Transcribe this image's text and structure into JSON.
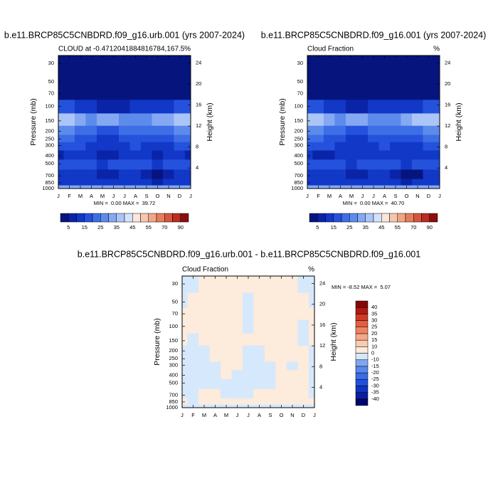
{
  "chart_data": [
    {
      "type": "contour",
      "title": "b.e11.BRCP85C5CNBDRD.f09_g16.urb.001 (yrs 2007-2024)",
      "left_label": "CLOUD at -0.4712041884816784,167.5",
      "units": "%",
      "ylabel": "Pressure (mb)",
      "y2label": "Height (km)",
      "stats": "MIN =  0.00 MAX =  39.72",
      "categories": [
        "J",
        "F",
        "M",
        "A",
        "M",
        "J",
        "J",
        "A",
        "S",
        "O",
        "N",
        "D",
        "J"
      ],
      "ylog": true,
      "ylim": [
        1000,
        24
      ],
      "yticks": [
        30,
        50,
        70,
        100,
        150,
        200,
        250,
        300,
        400,
        500,
        700,
        850,
        1000
      ],
      "y2ticks": [
        4,
        8,
        12,
        16,
        20,
        24
      ],
      "y": [
        30,
        50,
        70,
        100,
        150,
        200,
        250,
        300,
        400,
        500,
        700,
        850,
        1000
      ],
      "z": [
        [
          1,
          1,
          1,
          1,
          1,
          1,
          1,
          1,
          1,
          1,
          1,
          1,
          1
        ],
        [
          2,
          2,
          2,
          2,
          2,
          2,
          2,
          2,
          2,
          2,
          2,
          2,
          2
        ],
        [
          3,
          3,
          3,
          3,
          3,
          3,
          3,
          3,
          3,
          3,
          3,
          3,
          3
        ],
        [
          18,
          16,
          12,
          10,
          9,
          8,
          9,
          10,
          11,
          12,
          14,
          17,
          18
        ],
        [
          38,
          36,
          32,
          28,
          30,
          33,
          29,
          26,
          28,
          31,
          34,
          38,
          38
        ],
        [
          28,
          27,
          24,
          20,
          18,
          17,
          22,
          24,
          22,
          20,
          23,
          27,
          28
        ],
        [
          22,
          21,
          18,
          16,
          14,
          13,
          16,
          19,
          17,
          15,
          17,
          21,
          22
        ],
        [
          18,
          17,
          15,
          13,
          12,
          11,
          13,
          15,
          14,
          12,
          14,
          17,
          18
        ],
        [
          9,
          12,
          13,
          10,
          8,
          9,
          12,
          14,
          12,
          9,
          10,
          13,
          9
        ],
        [
          16,
          17,
          18,
          16,
          14,
          15,
          18,
          19,
          17,
          14,
          15,
          17,
          16
        ],
        [
          10,
          11,
          12,
          10,
          9,
          8,
          11,
          12,
          9,
          4,
          8,
          11,
          10
        ],
        [
          12,
          13,
          14,
          12,
          11,
          10,
          12,
          13,
          11,
          9,
          11,
          13,
          12
        ],
        [
          30,
          30,
          30,
          30,
          30,
          30,
          30,
          30,
          30,
          30,
          30,
          30,
          30
        ]
      ],
      "levels": [
        5,
        10,
        15,
        20,
        25,
        30,
        35,
        40,
        45,
        50,
        55,
        60,
        70,
        80,
        90
      ],
      "colorbar_ticks": [
        5,
        15,
        25,
        35,
        45,
        55,
        70,
        90
      ],
      "colorbar_position": "bottom",
      "colors": [
        "#06157e",
        "#0a24a8",
        "#1238c8",
        "#2552dc",
        "#3d6ee6",
        "#5d8bec",
        "#84a8f2",
        "#abc5f6",
        "#d3e2fb",
        "#fbe6da",
        "#f6c7ae",
        "#f0a585",
        "#e47d5c",
        "#d5563f",
        "#bb2e22",
        "#8c0d0d"
      ]
    },
    {
      "type": "contour",
      "title": "b.e11.BRCP85C5CNBDRD.f09_g16.001 (yrs 2007-2024)",
      "left_label": "Cloud Fraction",
      "units": "%",
      "ylabel": "Pressure (mb)",
      "y2label": "Height (km)",
      "stats": "MIN =  0.00 MAX =  40.70",
      "categories": [
        "J",
        "F",
        "M",
        "A",
        "M",
        "J",
        "J",
        "A",
        "S",
        "O",
        "N",
        "D",
        "J"
      ],
      "ylog": true,
      "ylim": [
        1000,
        24
      ],
      "yticks": [
        30,
        50,
        70,
        100,
        150,
        200,
        250,
        300,
        400,
        500,
        700,
        850,
        1000
      ],
      "y2ticks": [
        4,
        8,
        12,
        16,
        20,
        24
      ],
      "y": [
        30,
        50,
        70,
        100,
        150,
        200,
        250,
        300,
        400,
        500,
        700,
        850,
        1000
      ],
      "z": [
        [
          1,
          1,
          1,
          1,
          1,
          1,
          1,
          1,
          1,
          1,
          1,
          1,
          1
        ],
        [
          2,
          2,
          2,
          2,
          2,
          2,
          2,
          2,
          2,
          2,
          2,
          2,
          2
        ],
        [
          3,
          3,
          3,
          3,
          3,
          3,
          3,
          3,
          3,
          3,
          3,
          3,
          3
        ],
        [
          19,
          16,
          12,
          10,
          9,
          8,
          10,
          10,
          11,
          12,
          14,
          18,
          19
        ],
        [
          39,
          36,
          31,
          28,
          30,
          33,
          28,
          26,
          28,
          31,
          35,
          39,
          39
        ],
        [
          29,
          27,
          24,
          20,
          18,
          17,
          22,
          24,
          22,
          20,
          23,
          28,
          29
        ],
        [
          23,
          21,
          18,
          16,
          14,
          13,
          17,
          19,
          17,
          15,
          17,
          21,
          23
        ],
        [
          19,
          17,
          15,
          13,
          12,
          11,
          14,
          15,
          14,
          12,
          14,
          17,
          19
        ],
        [
          11,
          9,
          8,
          10,
          11,
          12,
          13,
          14,
          12,
          10,
          11,
          13,
          11
        ],
        [
          17,
          17,
          18,
          16,
          14,
          15,
          18,
          19,
          17,
          14,
          15,
          17,
          17
        ],
        [
          10,
          11,
          12,
          11,
          9,
          8,
          11,
          12,
          8,
          4,
          4,
          11,
          10
        ],
        [
          12,
          13,
          14,
          12,
          11,
          10,
          12,
          13,
          11,
          9,
          11,
          13,
          12
        ],
        [
          30,
          30,
          30,
          30,
          30,
          30,
          30,
          30,
          30,
          30,
          30,
          30,
          30
        ]
      ],
      "levels": [
        5,
        10,
        15,
        20,
        25,
        30,
        35,
        40,
        45,
        50,
        55,
        60,
        70,
        80,
        90
      ],
      "colorbar_ticks": [
        5,
        15,
        25,
        35,
        45,
        55,
        70,
        90
      ],
      "colorbar_position": "bottom",
      "colors": [
        "#06157e",
        "#0a24a8",
        "#1238c8",
        "#2552dc",
        "#3d6ee6",
        "#5d8bec",
        "#84a8f2",
        "#abc5f6",
        "#d3e2fb",
        "#fbe6da",
        "#f6c7ae",
        "#f0a585",
        "#e47d5c",
        "#d5563f",
        "#bb2e22",
        "#8c0d0d"
      ]
    },
    {
      "type": "contour",
      "title": "b.e11.BRCP85C5CNBDRD.f09_g16.urb.001 - b.e11.BRCP85C5CNBDRD.f09_g16.001",
      "left_label": "Cloud Fraction",
      "units": "%",
      "ylabel": "Pressure (mb)",
      "y2label": "Height (km)",
      "stats": "MIN = -8.52 MAX =  5.07",
      "categories": [
        "J",
        "F",
        "M",
        "A",
        "M",
        "J",
        "J",
        "A",
        "S",
        "O",
        "N",
        "D",
        "J"
      ],
      "ylog": true,
      "ylim": [
        1000,
        24
      ],
      "yticks": [
        30,
        50,
        70,
        100,
        150,
        200,
        250,
        300,
        400,
        500,
        700,
        850,
        1000
      ],
      "y2ticks": [
        4,
        8,
        12,
        16,
        20,
        24
      ],
      "y": [
        30,
        50,
        70,
        100,
        150,
        200,
        250,
        300,
        400,
        500,
        700,
        850,
        1000
      ],
      "z": [
        [
          -2,
          -1,
          1,
          1,
          1,
          1,
          1,
          1,
          1,
          1,
          1,
          -1,
          -2
        ],
        [
          -1,
          1,
          1,
          1,
          1,
          1,
          -1,
          1,
          1,
          1,
          1,
          1,
          -1
        ],
        [
          1,
          1,
          1,
          1,
          1,
          1,
          -1,
          1,
          1,
          1,
          1,
          1,
          1
        ],
        [
          1,
          1,
          1,
          1,
          1,
          1,
          -1,
          1,
          1,
          1,
          1,
          -1,
          1
        ],
        [
          1,
          -1,
          1,
          1,
          1,
          1,
          1,
          1,
          1,
          1,
          1,
          -1,
          1
        ],
        [
          -1,
          -2,
          -1,
          1,
          1,
          2,
          -1,
          -1,
          1,
          1,
          1,
          1,
          -1
        ],
        [
          -2,
          -3,
          -1,
          1,
          1,
          1,
          -1,
          -2,
          1,
          1,
          1,
          1,
          -2
        ],
        [
          -2,
          -3,
          -2,
          -1,
          1,
          1,
          -2,
          -2,
          -1,
          1,
          -1,
          1,
          -2
        ],
        [
          -2,
          -3,
          -2,
          -1,
          1,
          -1,
          -2,
          -2,
          -2,
          1,
          1,
          1,
          -2
        ],
        [
          -3,
          -2,
          -1,
          -1,
          -1,
          -1,
          -2,
          -1,
          -1,
          1,
          1,
          1,
          -3
        ],
        [
          -3,
          -2,
          1,
          1,
          -1,
          -1,
          -1,
          1,
          1,
          1,
          1,
          1,
          -3
        ],
        [
          1,
          -1,
          1,
          1,
          1,
          1,
          1,
          1,
          1,
          1,
          1,
          1,
          1
        ],
        [
          -1,
          -1,
          -1,
          -1,
          -1,
          -1,
          -1,
          -1,
          -1,
          -1,
          -1,
          -1,
          -1
        ]
      ],
      "levels": [
        -40,
        -35,
        -30,
        -25,
        -20,
        -15,
        -10,
        0,
        10,
        15,
        20,
        25,
        30,
        35,
        40
      ],
      "colorbar_ticks": [
        -40,
        -35,
        -30,
        -25,
        -20,
        -15,
        -10,
        0,
        10,
        15,
        20,
        25,
        30,
        35,
        40
      ],
      "colorbar_position": "right",
      "colors": [
        "#00046e",
        "#0a1ea0",
        "#1034c4",
        "#2250dc",
        "#3a6ce6",
        "#5a88ec",
        "#80a6f2",
        "#d6e8fb",
        "#fdebdc",
        "#fbcbb0",
        "#f6a888",
        "#ef8462",
        "#e35e40",
        "#d03a25",
        "#b01a14",
        "#850606"
      ]
    }
  ]
}
